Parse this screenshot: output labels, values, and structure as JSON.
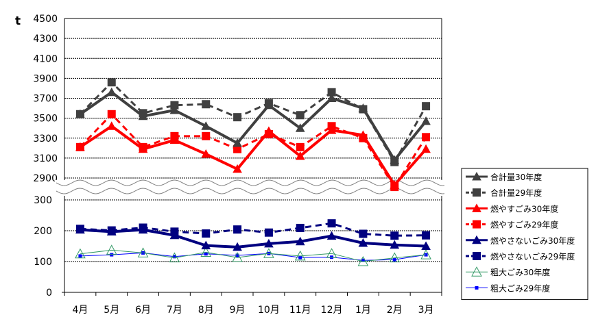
{
  "chart_data": {
    "type": "line",
    "unit": "t",
    "categories": [
      "4月",
      "5月",
      "6月",
      "7月",
      "8月",
      "9月",
      "10月",
      "11月",
      "12月",
      "1月",
      "2月",
      "3月"
    ],
    "axis_break": true,
    "upper_axis": {
      "ylim": [
        2900,
        4500
      ],
      "ticks": [
        2900,
        3100,
        3300,
        3500,
        3700,
        3900,
        4100,
        4300,
        4500
      ]
    },
    "lower_axis": {
      "ylim": [
        0,
        300
      ],
      "ticks": [
        0,
        100,
        200,
        300
      ]
    },
    "grid": true,
    "legend_position": "right",
    "series": [
      {
        "name": "合計量30年度",
        "panel": "upper",
        "color": "#404040",
        "dash": false,
        "width": 4,
        "marker": "triangle",
        "values": [
          3540,
          3760,
          3520,
          3580,
          3420,
          3250,
          3630,
          3400,
          3700,
          3600,
          3080,
          3470
        ]
      },
      {
        "name": "合計量29年度",
        "panel": "upper",
        "color": "#404040",
        "dash": true,
        "width": 3,
        "marker": "square",
        "values": [
          3540,
          3860,
          3550,
          3630,
          3640,
          3510,
          3650,
          3530,
          3760,
          3590,
          3060,
          3620
        ]
      },
      {
        "name": "燃やすごみ30年度",
        "panel": "upper",
        "color": "#ff0000",
        "dash": false,
        "width": 4,
        "marker": "triangle",
        "values": [
          3210,
          3420,
          3190,
          3280,
          3140,
          2990,
          3370,
          3120,
          3380,
          3330,
          2830,
          3190
        ]
      },
      {
        "name": "燃やすごみ29年度",
        "panel": "upper",
        "color": "#ff0000",
        "dash": true,
        "width": 3,
        "marker": "square",
        "values": [
          3210,
          3540,
          3210,
          3320,
          3320,
          3190,
          3340,
          3210,
          3420,
          3300,
          2810,
          3310
        ]
      },
      {
        "name": "燃やさないごみ30年度",
        "panel": "lower",
        "color": "#000080",
        "dash": false,
        "width": 4,
        "marker": "triangle",
        "values": [
          203,
          197,
          203,
          185,
          152,
          147,
          158,
          165,
          183,
          160,
          154,
          150
        ]
      },
      {
        "name": "燃やさないごみ29年度",
        "panel": "lower",
        "color": "#000080",
        "dash": true,
        "width": 3,
        "marker": "square",
        "values": [
          206,
          201,
          210,
          197,
          191,
          204,
          194,
          209,
          224,
          190,
          184,
          185
        ]
      },
      {
        "name": "粗大ごみ30年度",
        "panel": "lower",
        "color": "#339966",
        "dash": false,
        "width": 1,
        "marker": "open-triangle",
        "values": [
          125,
          137,
          128,
          112,
          130,
          113,
          126,
          118,
          126,
          100,
          112,
          122
        ]
      },
      {
        "name": "粗大ごみ29年度",
        "panel": "lower",
        "color": "#0000ff",
        "dash": false,
        "width": 1,
        "marker": "small-square",
        "values": [
          118,
          122,
          128,
          116,
          125,
          120,
          126,
          113,
          114,
          104,
          106,
          122
        ]
      }
    ]
  }
}
